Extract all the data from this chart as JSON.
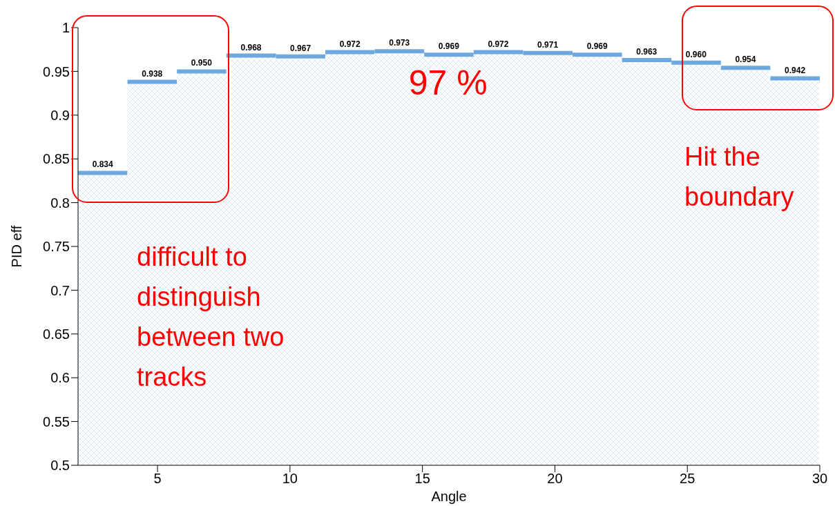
{
  "chart_data": {
    "type": "histogram",
    "xlabel": "Angle",
    "ylabel": "PID eff",
    "bins": [
      2,
      3.867,
      5.733,
      7.6,
      9.467,
      11.333,
      13.2,
      15.067,
      16.933,
      18.8,
      20.667,
      22.533,
      24.4,
      26.267,
      28.133,
      30
    ],
    "values": [
      0.834,
      0.938,
      0.95,
      0.968,
      0.967,
      0.972,
      0.973,
      0.969,
      0.972,
      0.971,
      0.969,
      0.963,
      0.96,
      0.954,
      0.942
    ],
    "value_labels": [
      "0.834",
      "0.938",
      "0.950",
      "0.968",
      "0.967",
      "0.972",
      "0.973",
      "0.969",
      "0.972",
      "0.971",
      "0.969",
      "0.963",
      "0.960",
      "0.954",
      "0.942"
    ],
    "color": "#6fa8dc",
    "xlim": [
      2,
      30
    ],
    "xticks": [
      5,
      10,
      15,
      20,
      25,
      30
    ],
    "ylim": [
      0.5,
      1
    ],
    "yticks": [
      0.5,
      0.55,
      0.6,
      0.65,
      0.7,
      0.75,
      0.8,
      0.85,
      0.9,
      0.95,
      1
    ],
    "annotations": [
      {
        "text": "97 %",
        "x": 15,
        "y": 0.97
      },
      "Hit the boundary",
      "difficult to distinguish between two tracks"
    ]
  }
}
